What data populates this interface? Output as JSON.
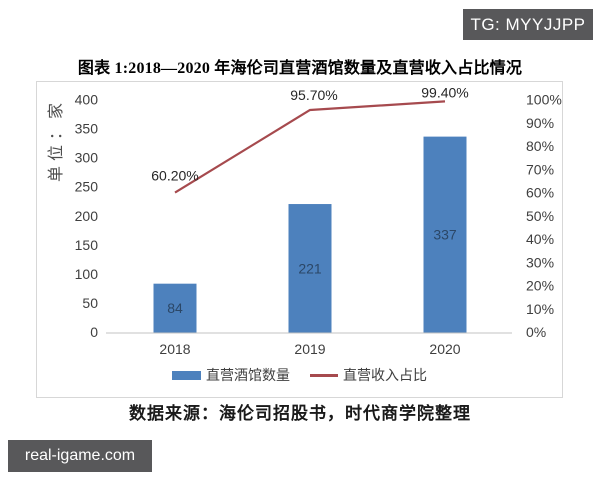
{
  "overlays": {
    "telegram_badge": "TG: MYYJJPP",
    "watermark": "real-igame.com"
  },
  "figure": {
    "title": "图表 1:2018—2020 年海伦司直营酒馆数量及直营收入占比情况",
    "source_note": "数据来源：海伦司招股书，时代商学院整理"
  },
  "chart_data": {
    "type": "combo",
    "categories": [
      "2018",
      "2019",
      "2020"
    ],
    "series": [
      {
        "name": "直营酒馆数量",
        "type": "bar",
        "axis": "left",
        "values": [
          84,
          221,
          337
        ],
        "data_labels": [
          "84",
          "221",
          "337"
        ],
        "color": "#4d81bd",
        "label_color": "#2b4767"
      },
      {
        "name": "直营收入占比",
        "type": "line",
        "axis": "right",
        "values": [
          60.2,
          95.7,
          99.4
        ],
        "data_labels": [
          "60.20%",
          "95.70%",
          "99.40%"
        ],
        "color": "#a64a4e",
        "label_color": "#262626"
      }
    ],
    "left_axis": {
      "title": "单位：家",
      "min": 0,
      "max": 400,
      "ticks": [
        "0",
        "50",
        "100",
        "150",
        "200",
        "250",
        "300",
        "350",
        "400"
      ]
    },
    "right_axis": {
      "min": 0,
      "max": 100,
      "ticks": [
        "0%",
        "10%",
        "20%",
        "30%",
        "40%",
        "50%",
        "60%",
        "70%",
        "80%",
        "90%",
        "100%"
      ]
    },
    "grid": false,
    "legend_position": "bottom"
  }
}
